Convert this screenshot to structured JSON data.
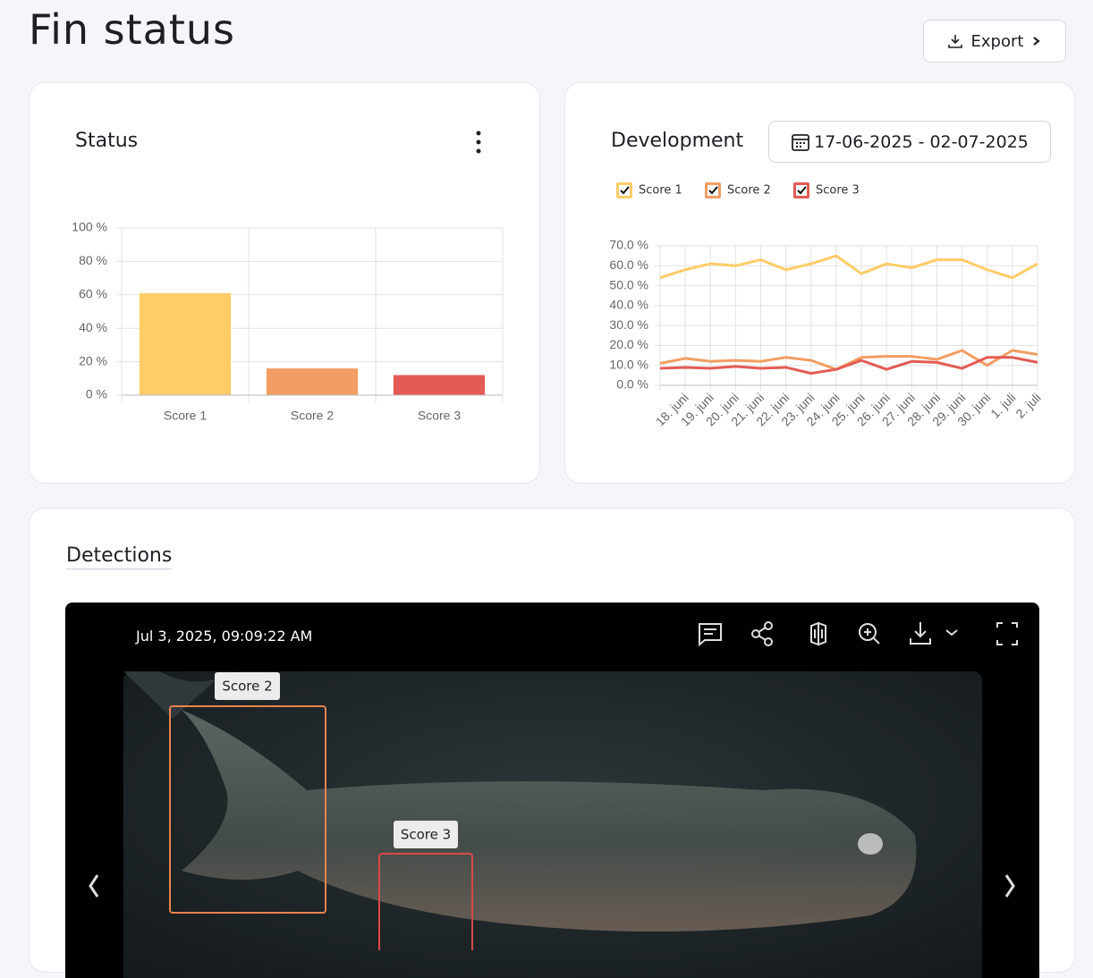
{
  "header": {
    "title": "Fin status",
    "export": "Export"
  },
  "status_card": {
    "title": "Status",
    "chart_data": {
      "type": "bar",
      "categories": [
        "Score 1",
        "Score 2",
        "Score 3"
      ],
      "values": [
        61,
        16,
        12
      ],
      "colors": [
        "#ffcc66",
        "#f29d63",
        "#e35b55"
      ],
      "ylim": [
        0,
        100
      ],
      "yticks": [
        {
          "value": 0,
          "label": "0 %"
        },
        {
          "value": 20,
          "label": "20 %"
        },
        {
          "value": 40,
          "label": "40 %"
        },
        {
          "value": 60,
          "label": "60 %"
        },
        {
          "value": 80,
          "label": "80 %"
        },
        {
          "value": 100,
          "label": "100 %"
        }
      ],
      "grid": true
    }
  },
  "development_card": {
    "title": "Development",
    "date_range": "17-06-2025 - 02-07-2025",
    "chart_data": {
      "type": "line",
      "categories": [
        null,
        "18. juni",
        "19. juni",
        "20. juni",
        "21. juni",
        "22. juni",
        "23. juni",
        "24. juni",
        "25. juni",
        "26. juni",
        "27. juni",
        "28. juni",
        "29. juni",
        "30. juni",
        "1. juli",
        "2. juli"
      ],
      "series": [
        {
          "name": "Score 1",
          "color": "#ffcc66",
          "values": [
            54,
            58,
            61,
            60,
            63,
            58,
            61,
            65,
            56,
            61,
            59,
            63,
            63,
            58,
            54,
            61
          ]
        },
        {
          "name": "Score 2",
          "color": "#f29d63",
          "values": [
            11,
            13.5,
            12,
            12.5,
            12,
            14,
            12.5,
            8,
            14,
            14.5,
            14.5,
            13,
            17.5,
            10,
            17.5,
            15.5
          ]
        },
        {
          "name": "Score 3",
          "color": "#e35b55",
          "values": [
            8.5,
            9,
            8.5,
            9.5,
            8.5,
            9,
            6,
            8,
            12.5,
            8,
            12,
            11.5,
            8.5,
            14,
            14,
            11.5
          ]
        }
      ],
      "ylim": [
        0,
        70
      ],
      "yticks": [
        {
          "value": 0,
          "label": "0.0 %"
        },
        {
          "value": 10,
          "label": "10.0 %"
        },
        {
          "value": 20,
          "label": "20.0 %"
        },
        {
          "value": 30,
          "label": "30.0 %"
        },
        {
          "value": 40,
          "label": "40.0 %"
        },
        {
          "value": 50,
          "label": "50.0 %"
        },
        {
          "value": 60,
          "label": "60.0 %"
        },
        {
          "value": 70,
          "label": "70.0 %"
        }
      ],
      "grid": true,
      "legend": "top"
    }
  },
  "detections": {
    "title": "Detections",
    "timestamp": "Jul 3, 2025, 09:09:22 AM",
    "boxes": [
      {
        "label": "Score 2",
        "color": "#e8834e"
      },
      {
        "label": "Score 3",
        "color": "#d94848"
      }
    ]
  }
}
